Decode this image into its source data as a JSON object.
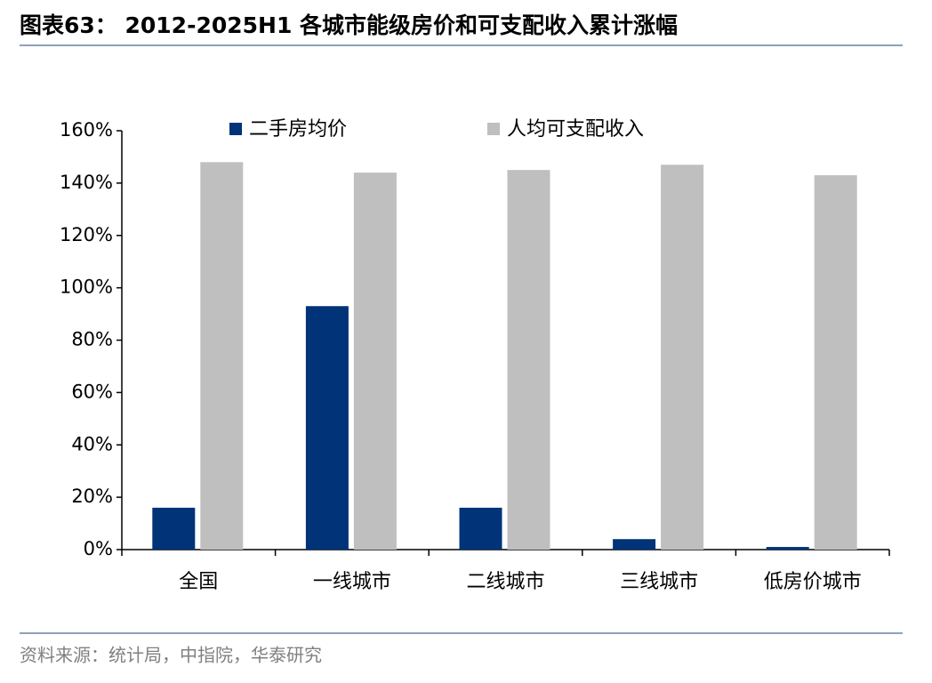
{
  "chart_data": {
    "type": "bar",
    "title": "图表63：  2012-2025H1 各城市能级房价和可支配收入累计涨幅",
    "source": "资料来源：统计局，中指院，华泰研究",
    "categories": [
      "全国",
      "一线城市",
      "二线城市",
      "三线城市",
      "低房价城市"
    ],
    "series": [
      {
        "name": "二手房均价",
        "color": "#003378",
        "values": [
          16,
          93,
          16,
          4,
          1
        ]
      },
      {
        "name": "人均可支配收入",
        "color": "#bfbfbf",
        "values": [
          148,
          144,
          145,
          147,
          143
        ]
      }
    ],
    "ylim": [
      0,
      160
    ],
    "yticks": [
      {
        "value": 0,
        "label": "0%"
      },
      {
        "value": 20,
        "label": "20%"
      },
      {
        "value": 40,
        "label": "40%"
      },
      {
        "value": 60,
        "label": "60%"
      },
      {
        "value": 80,
        "label": "80%"
      },
      {
        "value": 100,
        "label": "100%"
      },
      {
        "value": 120,
        "label": "120%"
      },
      {
        "value": 140,
        "label": "140%"
      },
      {
        "value": 160,
        "label": "160%"
      }
    ],
    "legend": "top",
    "grid": false
  }
}
